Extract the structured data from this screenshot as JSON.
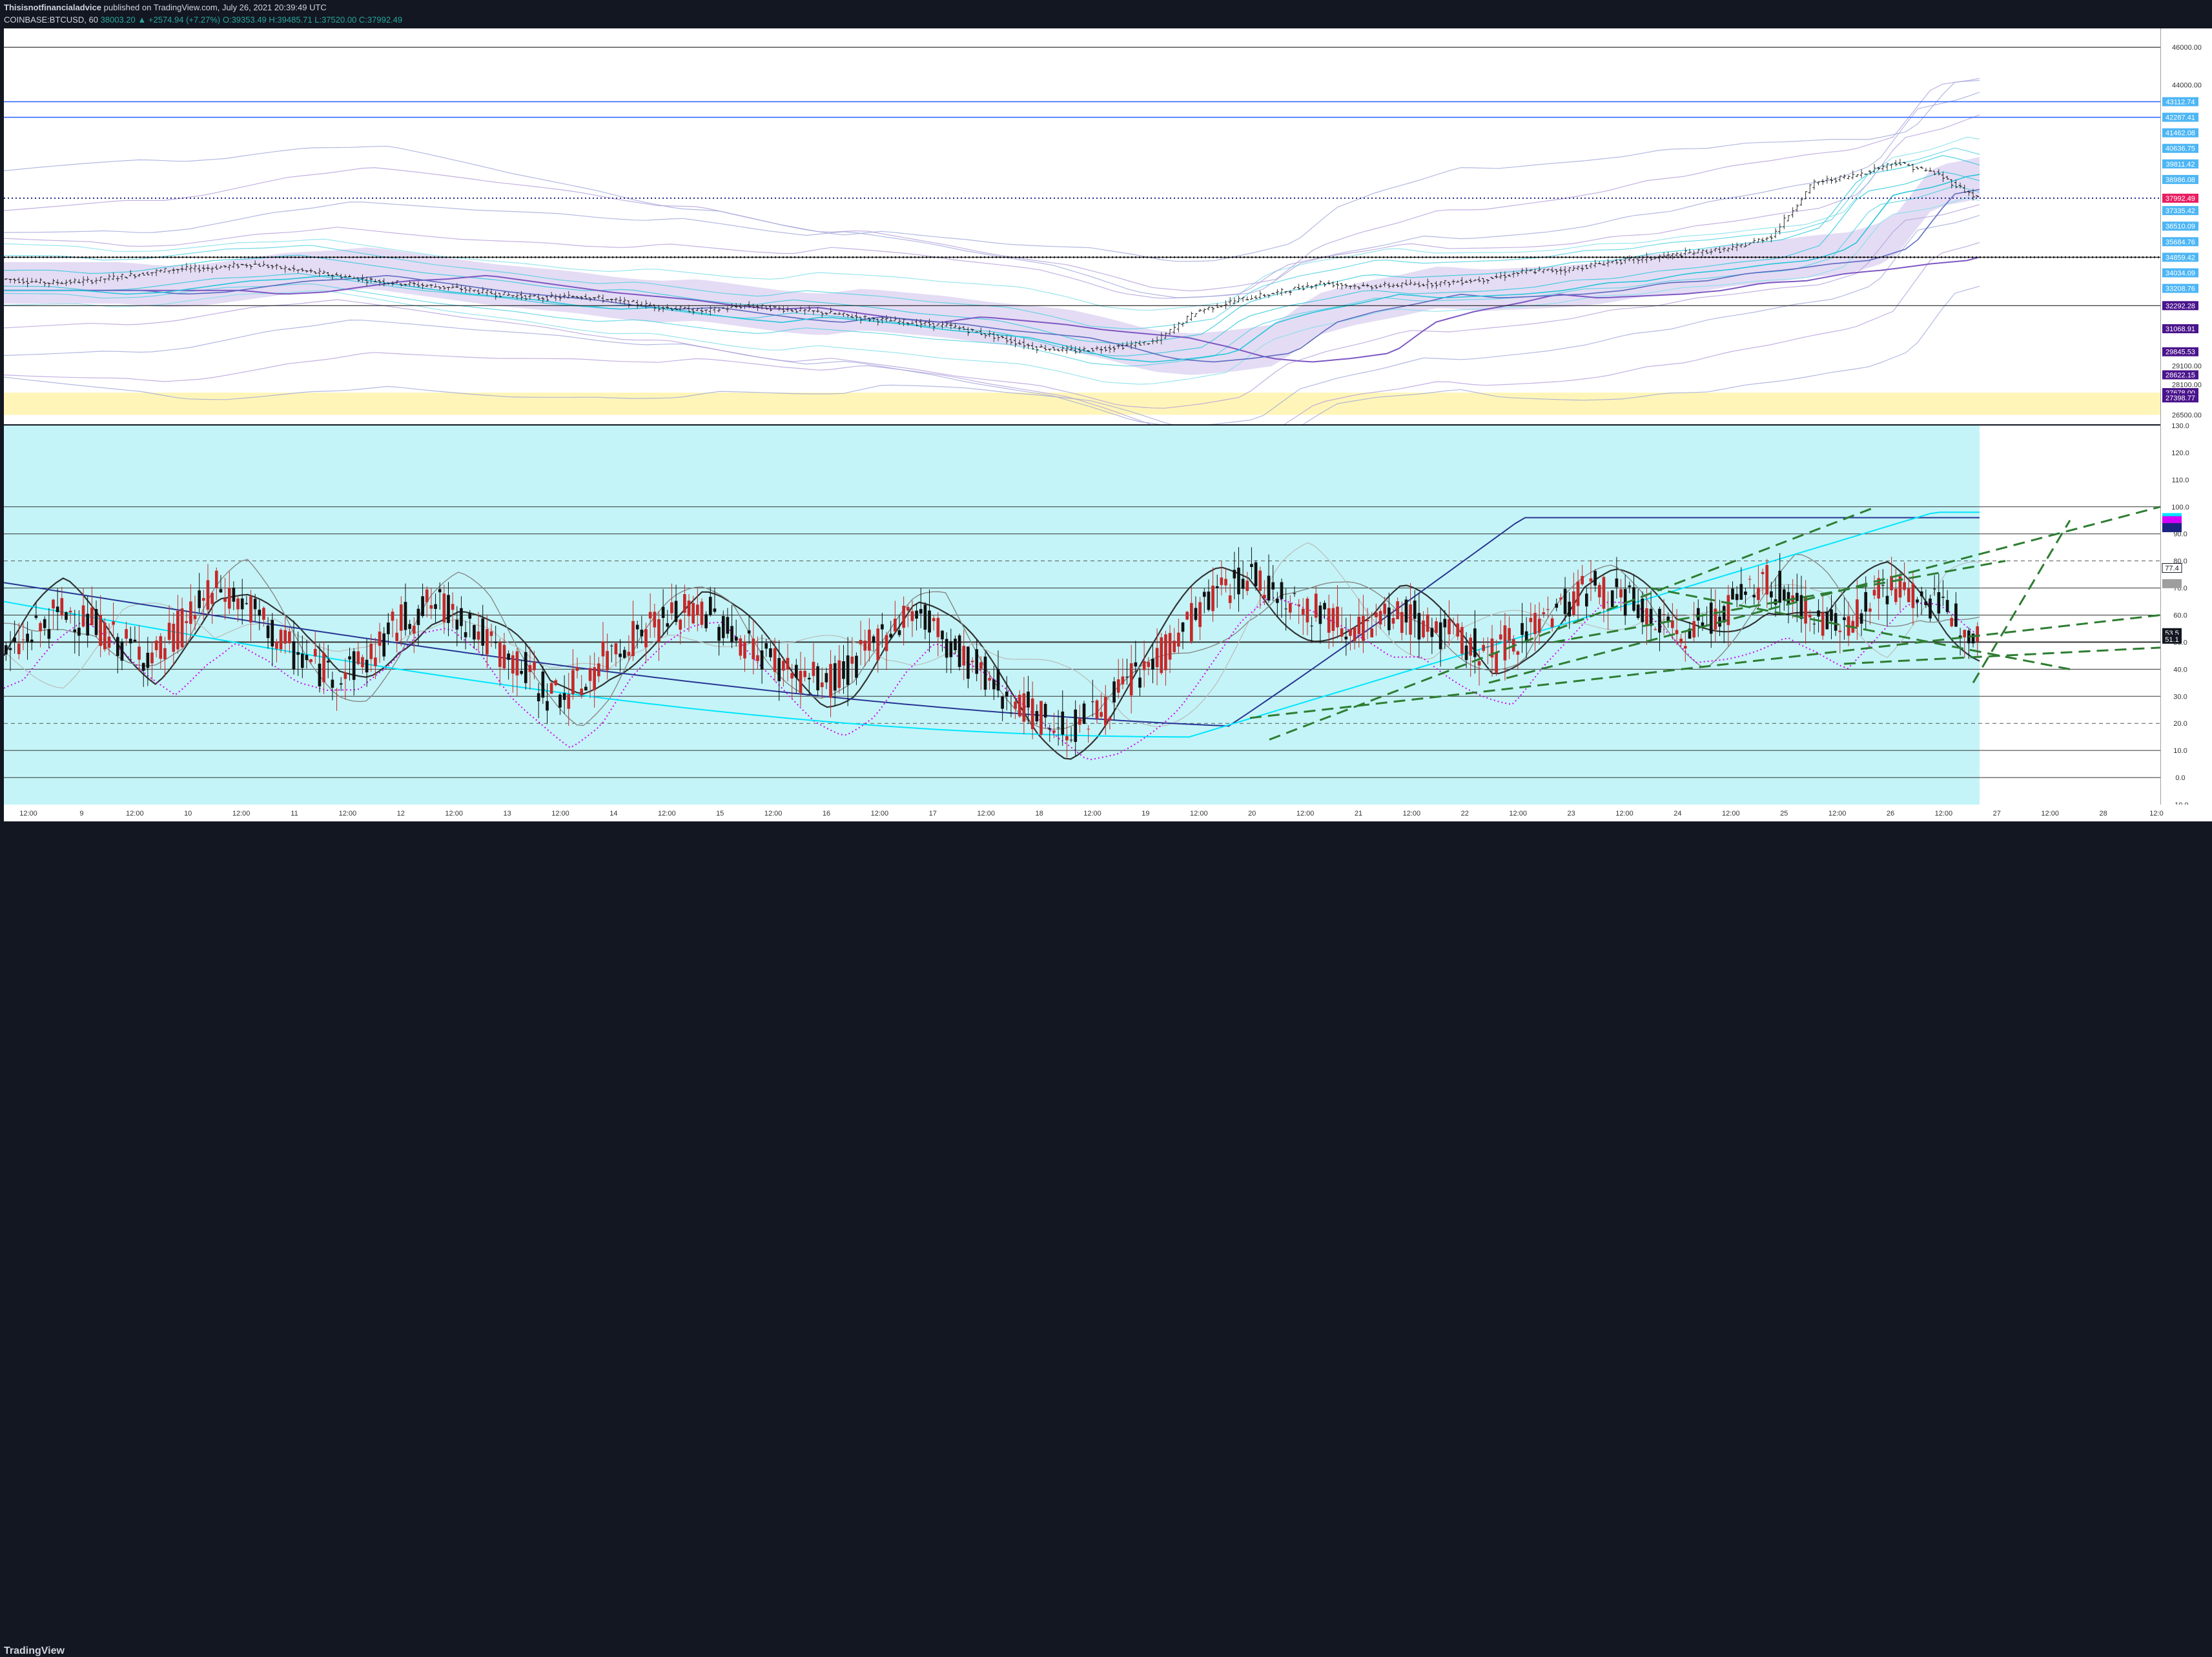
{
  "header": {
    "publisher": "Thisisnotfinancialadvice",
    "published_text": "published on TradingView.com, July 26, 2021 20:39:49 UTC",
    "symbol": "COINBASE:BTCUSD, 60",
    "last": "38003.20",
    "change": "▲ +2574.94 (+7.27%)",
    "ohlc": "O:39353.49 H:39485.71 L:37520.00 C:37992.49"
  },
  "footer": {
    "brand": "TradingView"
  },
  "colors": {
    "up": "#c62828",
    "down": "#111111",
    "osc_bg": "#c4f4f7",
    "band_fill": "#d9cdf0",
    "yellow_zone": "#fff5b8",
    "blue_line": "#2962ff",
    "cyan": "#00bcd4",
    "green_dash": "#2e7d32"
  },
  "chart_data": [
    {
      "type": "candlestick",
      "title": "",
      "symbol": "COINBASE:BTCUSD",
      "interval": "60",
      "ylim": [
        26000,
        47000
      ],
      "price_scale_ticks": [
        "46000.00",
        "44000.00",
        "29100.00",
        "28100.00",
        "26500.00"
      ],
      "horizontal_levels": [
        46000,
        43112.74,
        42287.41,
        34859.42,
        32292.28
      ],
      "price_labels": [
        {
          "text": "43112.74",
          "color": "#4db6f5"
        },
        {
          "text": "42287.41",
          "color": "#4db6f5"
        },
        {
          "text": "41462.08",
          "color": "#4db6f5"
        },
        {
          "text": "40636.75",
          "color": "#4db6f5"
        },
        {
          "text": "39811.42",
          "color": "#4db6f5"
        },
        {
          "text": "38986.08",
          "color": "#4db6f5"
        },
        {
          "text": "BTCUSD",
          "color": "#e91e63"
        },
        {
          "text": "37992.49",
          "color": "#e91e63"
        },
        {
          "text": "37335.42",
          "color": "#4db6f5"
        },
        {
          "text": "36510.09",
          "color": "#4db6f5"
        },
        {
          "text": "35684.76",
          "color": "#4db6f5"
        },
        {
          "text": "34859.42",
          "color": "#4db6f5"
        },
        {
          "text": "34034.09",
          "color": "#4db6f5"
        },
        {
          "text": "33208.76",
          "color": "#4db6f5"
        },
        {
          "text": "32292.28",
          "color": "#4a148c"
        },
        {
          "text": "31068.91",
          "color": "#4a148c"
        },
        {
          "text": "29845.53",
          "color": "#4a148c"
        },
        {
          "text": "28622.15",
          "color": "#4a148c"
        },
        {
          "text": "27678.00",
          "color": "#4a148c"
        },
        {
          "text": "27398.77",
          "color": "#4a148c"
        }
      ],
      "close_series": [
        33700,
        33500,
        33600,
        33900,
        34200,
        34300,
        34500,
        34200,
        33900,
        33600,
        33400,
        33200,
        32900,
        32700,
        32800,
        32500,
        32200,
        32000,
        32300,
        32100,
        31900,
        31600,
        31400,
        31200,
        30700,
        30100,
        29900,
        30100,
        30400,
        32000,
        32600,
        33000,
        33500,
        33300,
        33400,
        33500,
        33700,
        34100,
        34200,
        34600,
        34800,
        35100,
        35300,
        36000,
        38800,
        39200,
        39900,
        39300,
        38000
      ],
      "x_ticks": [
        "12:00",
        "9",
        "12:00",
        "10",
        "12:00",
        "11",
        "12:00",
        "12",
        "12:00",
        "13",
        "12:00",
        "14",
        "12:00",
        "15",
        "12:00",
        "16",
        "12:00",
        "17",
        "12:00",
        "18",
        "12:00",
        "19",
        "12:00",
        "20",
        "12:00",
        "21",
        "12:00",
        "22",
        "12:00",
        "23",
        "12:00",
        "24",
        "12:00",
        "25",
        "12:00",
        "26",
        "12:00",
        "27",
        "12:00",
        "28",
        "12:0"
      ]
    },
    {
      "type": "candlestick",
      "title": "",
      "ylim": [
        -10,
        130
      ],
      "y_ticks": [
        "130.0",
        "120.0",
        "110.0",
        "100.0",
        "90.0",
        "80.0",
        "70.0",
        "60.0",
        "50.0",
        "40.0",
        "30.0",
        "20.0",
        "10.0",
        "0.0",
        "-10.0"
      ],
      "horizontal_levels": [
        100,
        90,
        70,
        60,
        50,
        40,
        30,
        10,
        0
      ],
      "dashed_levels": [
        80,
        20
      ],
      "value_labels": [
        {
          "text": "96.0",
          "color": "#00e5ff"
        },
        {
          "text": "95.8",
          "color": "#d500f9"
        },
        {
          "text": "94.2",
          "color": "#1a237e"
        },
        {
          "text": "77.4",
          "color": "#131722"
        },
        {
          "text": "71.6",
          "color": "#9e9e9e"
        },
        {
          "text": "53.5",
          "color": "#ffffff"
        },
        {
          "text": "51.1",
          "color": "#ffffff"
        }
      ],
      "osc_series": [
        45,
        55,
        62,
        55,
        48,
        45,
        60,
        70,
        62,
        50,
        42,
        38,
        45,
        58,
        64,
        60,
        48,
        40,
        30,
        35,
        48,
        55,
        60,
        62,
        52,
        45,
        38,
        35,
        42,
        55,
        62,
        50,
        40,
        30,
        22,
        18,
        25,
        35,
        45,
        58,
        70,
        75,
        68,
        62,
        58,
        55,
        60,
        55,
        50,
        45,
        55,
        62,
        70,
        68,
        60,
        52,
        58,
        65,
        72,
        65,
        55,
        62,
        70,
        68,
        60,
        55
      ]
    }
  ]
}
